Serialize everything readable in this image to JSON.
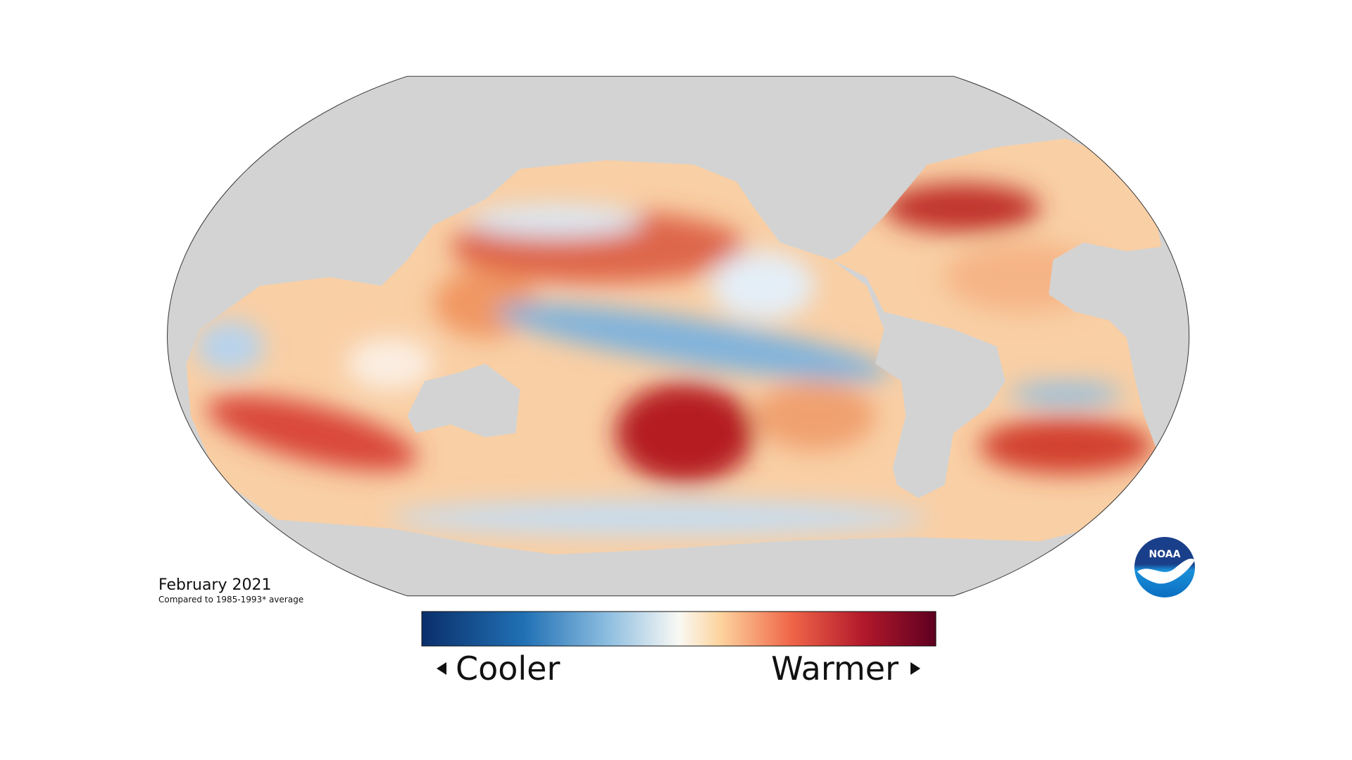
{
  "caption": {
    "date": "February 2021",
    "note": "Compared to 1985-1993* average"
  },
  "legend": {
    "low_label": "Cooler",
    "high_label": "Warmer"
  },
  "logo": {
    "text": "NOAA"
  }
}
